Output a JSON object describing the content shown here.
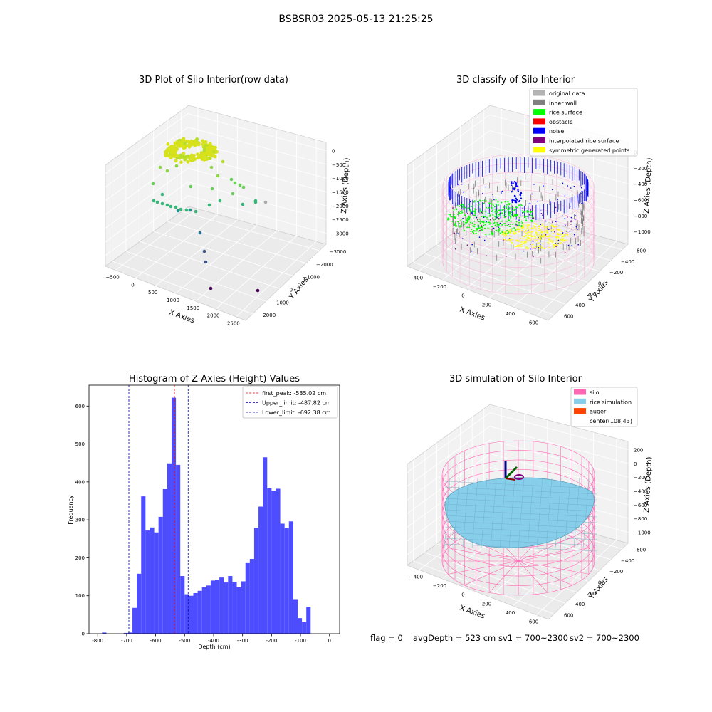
{
  "figure": {
    "suptitle": "BSBSR03 2025-05-13 21:25:25",
    "footer": {
      "flag": "flag = 0",
      "avg_depth": "avgDepth = 523 cm",
      "sv1": "sv1 = 700~2300",
      "sv2": "sv2 = 700~2300"
    }
  },
  "chart_data": [
    {
      "type": "scatter",
      "projection": "3d",
      "title": "3D Plot of Silo Interior(row data)",
      "xlabel": "X Axies",
      "ylabel": "Y Axies",
      "zlabel": "Z Axies (Depth)",
      "x_ticks": [
        "−500",
        "0",
        "500",
        "1000",
        "1500",
        "2000",
        "2500"
      ],
      "y_ticks": [
        "−3000",
        "−2000",
        "−1000",
        "0",
        "1000",
        "2000"
      ],
      "z_ticks": [
        "0",
        "−500",
        "−1000",
        "−1500",
        "−2000",
        "−2500",
        "−3000"
      ],
      "colormap": "viridis",
      "cluster_color": "#d8e21c"
    },
    {
      "type": "scatter",
      "projection": "3d",
      "title": "3D classify of Silo Interior",
      "xlabel": "X Axies",
      "ylabel": "Y Axies",
      "zlabel": "Z Axies (Depth)",
      "x_ticks": [
        "−400",
        "−200",
        "0",
        "200",
        "400",
        "600"
      ],
      "y_ticks": [
        "−600",
        "−400",
        "−200",
        "0",
        "200",
        "400",
        "600"
      ],
      "z_ticks": [
        "0",
        "−200",
        "−400",
        "−600",
        "−800",
        "−1000"
      ],
      "legend_position": "upper-right",
      "legend": [
        {
          "label": "original data",
          "color": "#b3b3b3"
        },
        {
          "label": "inner wall",
          "color": "#808080"
        },
        {
          "label": "rice surface",
          "color": "#00ff00"
        },
        {
          "label": "obstacle",
          "color": "#ff0000"
        },
        {
          "label": "noise",
          "color": "#0000ff"
        },
        {
          "label": "interpolated rice surface",
          "color": "#800080"
        },
        {
          "label": "symmetric generated points",
          "color": "#ffff00"
        }
      ],
      "silo_color": "#ff9fc9"
    },
    {
      "type": "bar",
      "title": "Histogram of Z-Axies (Height) Values",
      "xlabel": "Depth (cm)",
      "ylabel": "Frequency",
      "xlim": [
        -830,
        35
      ],
      "ylim": [
        0,
        655
      ],
      "x_ticks": [
        -800,
        -700,
        -600,
        -500,
        -400,
        -300,
        -200,
        -100,
        0
      ],
      "y_ticks": [
        0,
        100,
        200,
        300,
        400,
        500,
        600
      ],
      "bar_color": "#4d4dff",
      "bin_width": 15,
      "bin_starts": [
        -785,
        -770,
        -755,
        -740,
        -725,
        -710,
        -695,
        -680,
        -665,
        -650,
        -635,
        -620,
        -605,
        -590,
        -575,
        -560,
        -545,
        -530,
        -515,
        -500,
        -485,
        -470,
        -455,
        -440,
        -425,
        -410,
        -395,
        -380,
        -365,
        -350,
        -335,
        -320,
        -305,
        -290,
        -275,
        -260,
        -245,
        -230,
        -215,
        -200,
        -185,
        -170,
        -155,
        -140,
        -125,
        -110,
        -95,
        -80,
        -65,
        -50,
        -35,
        -20,
        -5
      ],
      "values": [
        3,
        0,
        0,
        0,
        0,
        2,
        3,
        68,
        158,
        362,
        272,
        280,
        267,
        308,
        381,
        449,
        622,
        445,
        152,
        104,
        100,
        107,
        113,
        122,
        127,
        140,
        142,
        148,
        135,
        152,
        137,
        122,
        138,
        186,
        197,
        279,
        335,
        465,
        383,
        377,
        382,
        290,
        278,
        296,
        91,
        41,
        30,
        71,
        0,
        0,
        0,
        0,
        0
      ],
      "vlines": [
        {
          "label": "first_peak: -535.02 cm",
          "x": -535.02,
          "color": "#ff0000"
        },
        {
          "label": "Upper_limit: -487.82 cm",
          "x": -487.82,
          "color": "#0000aa"
        },
        {
          "label": "Lower_limit: -692.38 cm",
          "x": -692.38,
          "color": "#0000aa"
        }
      ],
      "legend_position": "upper-right"
    },
    {
      "type": "area",
      "projection": "3d",
      "title": "3D simulation of Silo Interior",
      "xlabel": "X Axies",
      "ylabel": "Y Axies",
      "zlabel": "Z Axies (Depth)",
      "x_ticks": [
        "−400",
        "−200",
        "0",
        "200",
        "400",
        "600"
      ],
      "y_ticks": [
        "−600",
        "−400",
        "−200",
        "0",
        "200",
        "400",
        "600"
      ],
      "z_ticks": [
        "200",
        "0",
        "−200",
        "−400",
        "−600",
        "−800",
        "−1000"
      ],
      "legend_position": "upper-right",
      "legend": [
        {
          "label": "silo",
          "color": "#ff69b4"
        },
        {
          "label": "rice simulation",
          "color": "#87ceeb"
        },
        {
          "label": "auger",
          "color": "#ff4500"
        },
        {
          "label": "center(108,43)",
          "color": ""
        }
      ]
    }
  ]
}
